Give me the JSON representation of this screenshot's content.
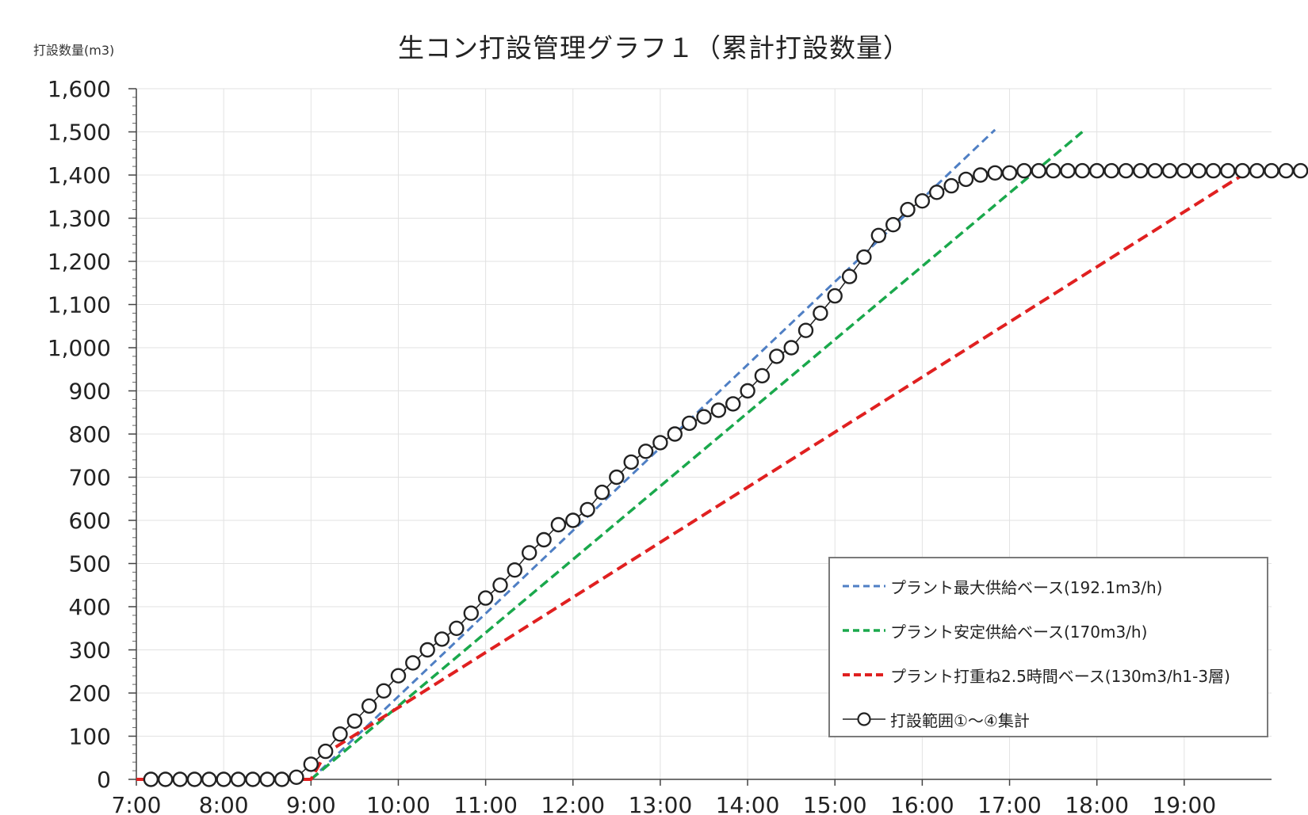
{
  "chart_data": {
    "type": "line",
    "title": "生コン打設管理グラフ１（累計打設数量）",
    "ylabel": "打設数量(m3)",
    "xlabel": "",
    "xlim": [
      "7:00",
      "20:00"
    ],
    "ylim": [
      0,
      1600
    ],
    "x_ticks": [
      "7:00",
      "8:00",
      "9:00",
      "10:00",
      "11:00",
      "12:00",
      "13:00",
      "14:00",
      "15:00",
      "16:00",
      "17:00",
      "18:00",
      "19:00"
    ],
    "y_ticks": [
      "0",
      "100",
      "200",
      "300",
      "400",
      "500",
      "600",
      "700",
      "800",
      "900",
      "1,000",
      "1,100",
      "1,200",
      "1,300",
      "1,400",
      "1,500",
      "1,600"
    ],
    "grid": true,
    "legend_position": "bottom-right",
    "series": [
      {
        "name": "プラント最大供給ベース(192.1m3/h)",
        "style": "dashed",
        "color": "#4f7fc4",
        "points": [
          [
            "9:00",
            0
          ],
          [
            "16:50",
            1505
          ]
        ]
      },
      {
        "name": "プラント安定供給ベース(170m3/h)",
        "style": "dashed",
        "color": "#1aa84c",
        "points": [
          [
            "9:00",
            0
          ],
          [
            "17:50",
            1500
          ]
        ]
      },
      {
        "name": "プラント打重ね2.5時間ベース(130m3/h1-3層)",
        "style": "dashed",
        "color": "#e02020",
        "points": [
          [
            "7:00",
            0
          ],
          [
            "9:00",
            0
          ],
          [
            "9:10",
            60
          ],
          [
            "19:40",
            1400
          ]
        ]
      },
      {
        "name": "打設範囲①～④集計",
        "style": "line-circle",
        "color": "#222222",
        "points": [
          [
            "7:10",
            0
          ],
          [
            "7:20",
            0
          ],
          [
            "7:30",
            0
          ],
          [
            "7:40",
            0
          ],
          [
            "7:50",
            0
          ],
          [
            "8:00",
            0
          ],
          [
            "8:10",
            0
          ],
          [
            "8:20",
            0
          ],
          [
            "8:30",
            0
          ],
          [
            "8:40",
            0
          ],
          [
            "8:50",
            5
          ],
          [
            "9:00",
            35
          ],
          [
            "9:10",
            65
          ],
          [
            "9:20",
            105
          ],
          [
            "9:30",
            135
          ],
          [
            "9:40",
            170
          ],
          [
            "9:50",
            205
          ],
          [
            "10:00",
            240
          ],
          [
            "10:10",
            270
          ],
          [
            "10:20",
            300
          ],
          [
            "10:30",
            325
          ],
          [
            "10:40",
            350
          ],
          [
            "10:50",
            385
          ],
          [
            "11:00",
            420
          ],
          [
            "11:10",
            450
          ],
          [
            "11:20",
            485
          ],
          [
            "11:30",
            525
          ],
          [
            "11:40",
            555
          ],
          [
            "11:50",
            590
          ],
          [
            "12:00",
            600
          ],
          [
            "12:10",
            625
          ],
          [
            "12:20",
            665
          ],
          [
            "12:30",
            700
          ],
          [
            "12:40",
            735
          ],
          [
            "12:50",
            760
          ],
          [
            "13:00",
            780
          ],
          [
            "13:10",
            800
          ],
          [
            "13:20",
            825
          ],
          [
            "13:30",
            840
          ],
          [
            "13:40",
            855
          ],
          [
            "13:50",
            870
          ],
          [
            "14:00",
            900
          ],
          [
            "14:10",
            935
          ],
          [
            "14:20",
            980
          ],
          [
            "14:30",
            1000
          ],
          [
            "14:40",
            1040
          ],
          [
            "14:50",
            1080
          ],
          [
            "15:00",
            1120
          ],
          [
            "15:10",
            1165
          ],
          [
            "15:20",
            1210
          ],
          [
            "15:30",
            1260
          ],
          [
            "15:40",
            1285
          ],
          [
            "15:50",
            1320
          ],
          [
            "16:00",
            1340
          ],
          [
            "16:10",
            1360
          ],
          [
            "16:20",
            1375
          ],
          [
            "16:30",
            1390
          ],
          [
            "16:40",
            1400
          ],
          [
            "16:50",
            1405
          ],
          [
            "17:00",
            1405
          ],
          [
            "17:10",
            1410
          ],
          [
            "17:20",
            1410
          ],
          [
            "17:30",
            1410
          ],
          [
            "17:40",
            1410
          ],
          [
            "17:50",
            1410
          ],
          [
            "18:00",
            1410
          ],
          [
            "18:10",
            1410
          ],
          [
            "18:20",
            1410
          ],
          [
            "18:30",
            1410
          ],
          [
            "18:40",
            1410
          ],
          [
            "18:50",
            1410
          ],
          [
            "19:00",
            1410
          ],
          [
            "19:10",
            1410
          ],
          [
            "19:20",
            1410
          ],
          [
            "19:30",
            1410
          ],
          [
            "19:40",
            1410
          ],
          [
            "19:50",
            1410
          ],
          [
            "20:00",
            1410
          ],
          [
            "20:10",
            1410
          ],
          [
            "20:20",
            1410
          ]
        ]
      }
    ]
  }
}
